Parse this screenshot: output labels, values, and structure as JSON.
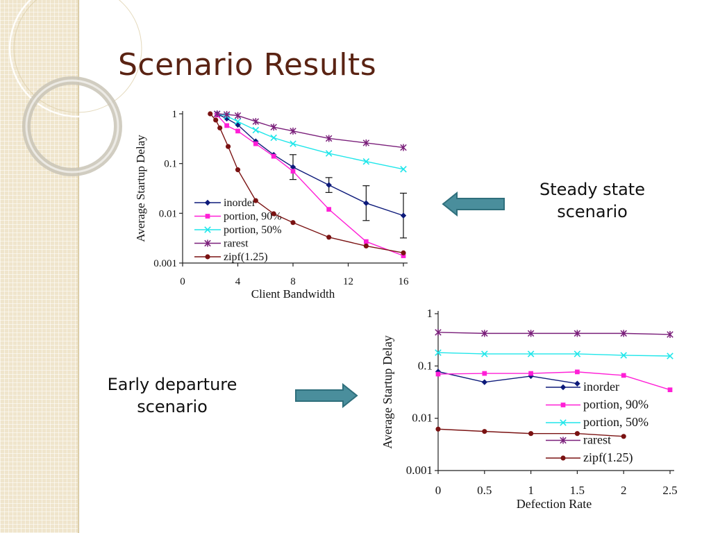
{
  "slide": {
    "title": "Scenario Results",
    "caption_steady": [
      "Steady state",
      "scenario"
    ],
    "caption_early": [
      "Early departure",
      "scenario"
    ]
  },
  "colors": {
    "title": "#5a2313",
    "arrow_fill": "#4a8e9c",
    "arrow_stroke": "#2f6f7c"
  },
  "chart_data": [
    {
      "type": "line",
      "y_scale": "log",
      "xlabel": "Client Bandwidth",
      "ylabel": "Average Startup Delay",
      "xlim": [
        0,
        16
      ],
      "ylim": [
        0.001,
        1
      ],
      "x_ticks": [
        "0",
        "4",
        "8",
        "12",
        "16"
      ],
      "x_tick_values": [
        0,
        4,
        8,
        12,
        16
      ],
      "y_ticks": [
        "0.001",
        "0.01",
        "0.1",
        "1"
      ],
      "y_tick_values": [
        0.001,
        0.01,
        0.1,
        1
      ],
      "grid": false,
      "legend": "bottom-left",
      "series": [
        {
          "name": "inorder",
          "color": "#0d1a7a",
          "marker": "diamond",
          "x": [
            2.5,
            3.2,
            4,
            5.3,
            6.6,
            8,
            10.6,
            13.3,
            16
          ],
          "y": [
            1,
            0.8,
            0.6,
            0.28,
            0.15,
            0.085,
            0.037,
            0.016,
            0.009
          ],
          "error": [
            0,
            0,
            0,
            0,
            0,
            0.25,
            0.15,
            0.35,
            0.45
          ]
        },
        {
          "name": "portion, 90%",
          "color": "#ff1fd6",
          "marker": "square",
          "x": [
            2.5,
            3.2,
            4,
            5.3,
            6.6,
            8,
            10.6,
            13.3,
            16
          ],
          "y": [
            0.95,
            0.58,
            0.45,
            0.25,
            0.14,
            0.07,
            0.012,
            0.0027,
            0.0014
          ]
        },
        {
          "name": "portion, 50%",
          "color": "#1fe6ea",
          "marker": "x",
          "x": [
            2.5,
            3.2,
            4,
            5.3,
            6.6,
            8,
            10.6,
            13.3,
            16
          ],
          "y": [
            1,
            0.9,
            0.7,
            0.47,
            0.33,
            0.25,
            0.16,
            0.11,
            0.077
          ]
        },
        {
          "name": "rarest",
          "color": "#7a1f7a",
          "marker": "star",
          "x": [
            2.5,
            3.2,
            4,
            5.3,
            6.6,
            8,
            10.6,
            13.3,
            16
          ],
          "y": [
            1,
            0.97,
            0.92,
            0.7,
            0.54,
            0.45,
            0.32,
            0.26,
            0.21
          ]
        },
        {
          "name": "zipf(1.25)",
          "color": "#7a1212",
          "marker": "circle",
          "x": [
            2,
            2.4,
            2.7,
            3.3,
            4,
            5.3,
            6.6,
            8,
            10.6,
            13.3,
            16
          ],
          "y": [
            1,
            0.75,
            0.52,
            0.22,
            0.075,
            0.018,
            0.0098,
            0.0065,
            0.0033,
            0.0022,
            0.0016
          ]
        }
      ]
    },
    {
      "type": "line",
      "y_scale": "log",
      "xlabel": "Defection Rate",
      "ylabel": "Average Startup Delay",
      "xlim": [
        0,
        2.5
      ],
      "ylim": [
        0.001,
        1
      ],
      "x_ticks": [
        "0",
        "0.5",
        "1",
        "1.5",
        "2",
        "2.5"
      ],
      "x_tick_values": [
        0,
        0.5,
        1,
        1.5,
        2,
        2.5
      ],
      "y_ticks": [
        "0.001",
        "0.01",
        "0.1",
        "1"
      ],
      "y_tick_values": [
        0.001,
        0.01,
        0.1,
        1
      ],
      "grid": false,
      "legend": "right",
      "series": [
        {
          "name": "inorder",
          "color": "#0d1a7a",
          "marker": "diamond",
          "x": [
            0,
            0.5,
            1,
            1.5
          ],
          "y": [
            0.078,
            0.049,
            0.064,
            0.046
          ]
        },
        {
          "name": "portion, 90%",
          "color": "#ff1fd6",
          "marker": "square",
          "x": [
            0,
            0.5,
            1,
            1.5,
            2,
            2.5
          ],
          "y": [
            0.07,
            0.072,
            0.072,
            0.077,
            0.066,
            0.035
          ]
        },
        {
          "name": "portion, 50%",
          "color": "#1fe6ea",
          "marker": "x",
          "x": [
            0,
            0.5,
            1,
            1.5,
            2,
            2.5
          ],
          "y": [
            0.18,
            0.17,
            0.17,
            0.17,
            0.16,
            0.155
          ]
        },
        {
          "name": "rarest",
          "color": "#7a1f7a",
          "marker": "star",
          "x": [
            0,
            0.5,
            1,
            1.5,
            2,
            2.5
          ],
          "y": [
            0.44,
            0.42,
            0.42,
            0.42,
            0.42,
            0.4
          ]
        },
        {
          "name": "zipf(1.25)",
          "color": "#7a1212",
          "marker": "circle",
          "x": [
            0,
            0.5,
            1,
            1.5,
            2
          ],
          "y": [
            0.0062,
            0.0056,
            0.0051,
            0.0051,
            0.0045
          ]
        }
      ]
    }
  ]
}
